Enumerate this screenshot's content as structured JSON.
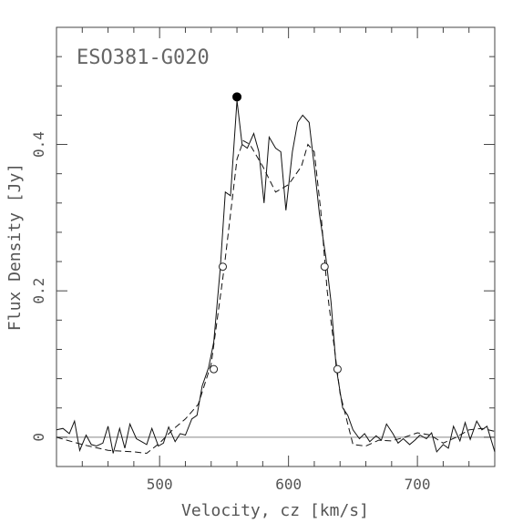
{
  "chart_data": {
    "type": "line",
    "title": "ESO381-G020",
    "xlabel": "Velocity, cz [km/s]",
    "ylabel": "Flux Density [Jy]",
    "xlim": [
      420,
      760
    ],
    "ylim": [
      -0.04,
      0.56
    ],
    "x_ticks": [
      500,
      600,
      700
    ],
    "y_ticks": [
      0,
      0.2,
      0.4
    ],
    "x_tick_labels": [
      "500",
      "600",
      "700"
    ],
    "y_tick_labels": [
      "0",
      "0.2",
      "0.4"
    ],
    "grid": false,
    "zero_line": true,
    "series": [
      {
        "style": "solid",
        "x": [
          420,
          425,
          430,
          434,
          438,
          443,
          447,
          451,
          456,
          460,
          464,
          469,
          473,
          477,
          482,
          486,
          490,
          494,
          499,
          503,
          507,
          512,
          516,
          520,
          525,
          529,
          533,
          538,
          542,
          547,
          551,
          555,
          560,
          564,
          568,
          573,
          577,
          581,
          585,
          590,
          594,
          598,
          603,
          607,
          611,
          616,
          620,
          624,
          629,
          633,
          637,
          642,
          646,
          650,
          655,
          659,
          663,
          668,
          672,
          676,
          681,
          685,
          689,
          694,
          698,
          702,
          707,
          711,
          715,
          720,
          724,
          728,
          733,
          737,
          741,
          746,
          750,
          754,
          760
        ],
        "y": [
          0.01,
          0.012,
          0.005,
          0.022,
          -0.018,
          0.003,
          -0.01,
          -0.012,
          -0.008,
          0.015,
          -0.022,
          0.012,
          -0.015,
          0.018,
          -0.002,
          -0.006,
          -0.01,
          0.012,
          -0.012,
          -0.008,
          0.014,
          -0.006,
          0.005,
          0.003,
          0.025,
          0.03,
          0.07,
          0.095,
          0.13,
          0.23,
          0.335,
          0.33,
          0.46,
          0.4,
          0.395,
          0.415,
          0.39,
          0.32,
          0.41,
          0.395,
          0.39,
          0.31,
          0.39,
          0.43,
          0.44,
          0.43,
          0.37,
          0.305,
          0.245,
          0.185,
          0.095,
          0.04,
          0.03,
          0.01,
          -0.002,
          0.005,
          -0.006,
          0.002,
          -0.004,
          0.018,
          0.005,
          -0.008,
          -0.002,
          -0.01,
          -0.004,
          0.003,
          -0.002,
          0.006,
          -0.02,
          -0.01,
          -0.015,
          0.015,
          -0.005,
          0.02,
          -0.003,
          0.022,
          0.01,
          0.015,
          -0.02
        ]
      },
      {
        "style": "dashed",
        "x": [
          420,
          440,
          460,
          480,
          490,
          500,
          510,
          520,
          530,
          540,
          550,
          560,
          565,
          570,
          580,
          590,
          600,
          610,
          615,
          620,
          625,
          630,
          640,
          650,
          660,
          670,
          680,
          690,
          700,
          710,
          720,
          730,
          740,
          750,
          760
        ],
        "y": [
          0.0,
          -0.01,
          -0.018,
          -0.02,
          -0.022,
          -0.008,
          0.01,
          0.025,
          0.045,
          0.1,
          0.23,
          0.38,
          0.405,
          0.4,
          0.37,
          0.335,
          0.345,
          0.37,
          0.4,
          0.39,
          0.31,
          0.2,
          0.06,
          -0.01,
          -0.012,
          -0.004,
          -0.005,
          0.0,
          0.006,
          0.003,
          -0.008,
          0.0,
          0.01,
          0.012,
          0.008
        ]
      }
    ],
    "markers": [
      {
        "type": "filled",
        "x": 560,
        "y": 0.465
      },
      {
        "type": "open",
        "x": 542,
        "y": 0.093
      },
      {
        "type": "open",
        "x": 549,
        "y": 0.233
      },
      {
        "type": "open",
        "x": 628,
        "y": 0.233
      },
      {
        "type": "open",
        "x": 638,
        "y": 0.093
      }
    ]
  }
}
